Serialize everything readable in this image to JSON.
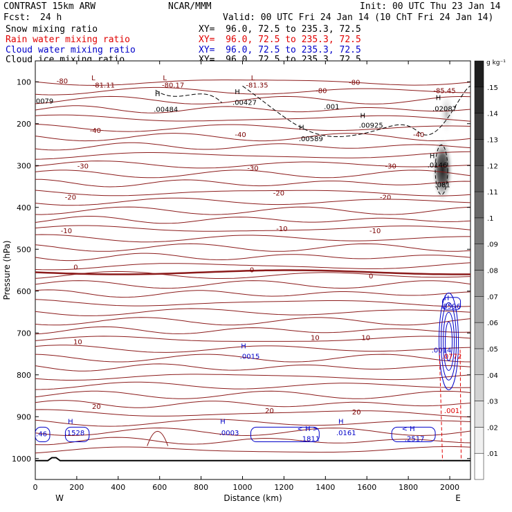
{
  "header": {
    "model": "CONTRAST 15km ARW",
    "center": "NCAR/MMM",
    "init": "Init: 00 UTC Thu 23 Jan 14",
    "fcst_label": "Fcst:",
    "fcst_value": "24 h",
    "valid": "Valid: 00 UTC Fri 24 Jan 14 (10 ChT Fri 24 Jan 14)",
    "fields": [
      {
        "name": "Snow mixing ratio",
        "xy": "XY=  96.0, 72.5 to 235.3, 72.5",
        "color": "#000000"
      },
      {
        "name": "Rain water mixing ratio",
        "xy": "XY=  96.0, 72.5 to 235.3, 72.5",
        "color": "#e00000"
      },
      {
        "name": "Cloud water mixing ratio",
        "xy": "XY=  96.0, 72.5 to 235.3, 72.5",
        "color": "#0000c8"
      },
      {
        "name": "Cloud ice mixing ratio",
        "xy": "XY=  96.0, 72.5 to 235.3, 72.5",
        "color": "#000000"
      }
    ]
  },
  "chart_data": {
    "type": "heatmap",
    "xlabel": "Distance (km)",
    "ylabel": "Pressure (hPa)",
    "xlim": [
      0,
      2100
    ],
    "ylim": [
      1050,
      50
    ],
    "x_ticks": [
      0,
      200,
      400,
      600,
      800,
      1000,
      1200,
      1400,
      1600,
      1800,
      2000
    ],
    "y_ticks": [
      100,
      200,
      300,
      400,
      500,
      600,
      700,
      800,
      900,
      1000
    ],
    "x_end_labels": {
      "left": "W",
      "right": "E"
    },
    "colorbar": {
      "unit": "g kg⁻¹",
      "ticks": [
        ".01",
        ".02",
        ".03",
        ".04",
        ".05",
        ".06",
        ".07",
        ".08",
        ".09",
        ".1",
        ".11",
        ".12",
        ".13",
        ".14",
        ".15"
      ]
    },
    "temperature_contours": [
      {
        "label": "-80",
        "p": 100
      },
      {
        "label": "-40",
        "p": 215
      },
      {
        "label": "-30",
        "p": 300
      },
      {
        "label": "-20",
        "p": 370
      },
      {
        "label": "-10",
        "p": 465
      },
      {
        "label": "0",
        "p": 560
      },
      {
        "label": "10",
        "p": 725
      },
      {
        "label": "20",
        "p": 865
      }
    ],
    "contour_labels": [
      {
        "text": "-80",
        "x": 130,
        "p": 97,
        "color": "#7a0000"
      },
      {
        "text": "-81.11",
        "x": 330,
        "p": 107,
        "color": "#7a0000"
      },
      {
        "text": "L",
        "x": 280,
        "p": 90,
        "color": "#7a0000"
      },
      {
        "text": "-80.17",
        "x": 665,
        "p": 107,
        "color": "#7a0000"
      },
      {
        "text": "L",
        "x": 625,
        "p": 90,
        "color": "#7a0000"
      },
      {
        "text": "-81.35",
        "x": 1070,
        "p": 107,
        "color": "#7a0000"
      },
      {
        "text": "L",
        "x": 1050,
        "p": 90,
        "color": "#7a0000"
      },
      {
        "text": "-80",
        "x": 1380,
        "p": 120,
        "color": "#7a0000"
      },
      {
        "text": "-80",
        "x": 1540,
        "p": 100,
        "color": "#7a0000"
      },
      {
        "text": "-85.45",
        "x": 1975,
        "p": 120,
        "color": "#7a0000"
      },
      {
        "text": ".0079",
        "x": 40,
        "p": 145,
        "color": "#000000"
      },
      {
        "text": "H",
        "x": 590,
        "p": 128,
        "color": "#000000"
      },
      {
        "text": ".00484",
        "x": 630,
        "p": 165,
        "color": "#000000"
      },
      {
        "text": "H",
        "x": 975,
        "p": 123,
        "color": "#000000"
      },
      {
        "text": ".00427",
        "x": 1010,
        "p": 148,
        "color": "#000000"
      },
      {
        "text": ".001",
        "x": 1430,
        "p": 158,
        "color": "#000000"
      },
      {
        "text": "H",
        "x": 1945,
        "p": 137,
        "color": "#000000"
      },
      {
        "text": ".02087",
        "x": 1975,
        "p": 163,
        "color": "#000000"
      },
      {
        "text": "H",
        "x": 1285,
        "p": 208,
        "color": "#000000"
      },
      {
        "text": ".00589",
        "x": 1330,
        "p": 235,
        "color": "#000000"
      },
      {
        "text": "H",
        "x": 1580,
        "p": 180,
        "color": "#000000"
      },
      {
        "text": ".00925",
        "x": 1620,
        "p": 203,
        "color": "#000000"
      },
      {
        "text": "-40",
        "x": 290,
        "p": 215,
        "color": "#7a0000"
      },
      {
        "text": "-40",
        "x": 990,
        "p": 225,
        "color": "#7a0000"
      },
      {
        "text": "-40",
        "x": 1850,
        "p": 225,
        "color": "#7a0000"
      },
      {
        "text": "H",
        "x": 1915,
        "p": 276,
        "color": "#000000"
      },
      {
        "text": ".0146",
        "x": 1940,
        "p": 298,
        "color": "#000000"
      },
      {
        "text": ".081",
        "x": 1965,
        "p": 345,
        "color": "#000000"
      },
      {
        "text": "-30",
        "x": 230,
        "p": 300,
        "color": "#7a0000"
      },
      {
        "text": "-30",
        "x": 1050,
        "p": 305,
        "color": "#7a0000"
      },
      {
        "text": "-30",
        "x": 1715,
        "p": 300,
        "color": "#7a0000"
      },
      {
        "text": "-20",
        "x": 170,
        "p": 375,
        "color": "#7a0000"
      },
      {
        "text": "-20",
        "x": 1175,
        "p": 365,
        "color": "#7a0000"
      },
      {
        "text": "-20",
        "x": 1690,
        "p": 375,
        "color": "#7a0000"
      },
      {
        "text": "-10",
        "x": 150,
        "p": 455,
        "color": "#7a0000"
      },
      {
        "text": "-10",
        "x": 1190,
        "p": 450,
        "color": "#7a0000"
      },
      {
        "text": "-10",
        "x": 1640,
        "p": 455,
        "color": "#7a0000"
      },
      {
        "text": "0",
        "x": 195,
        "p": 542,
        "color": "#7a0000"
      },
      {
        "text": "0",
        "x": 1045,
        "p": 548,
        "color": "#7a0000"
      },
      {
        "text": "0",
        "x": 1620,
        "p": 563,
        "color": "#7a0000"
      },
      {
        "text": "H",
        "x": 1985,
        "p": 615,
        "color": "#0000c8"
      },
      {
        "text": ".8596",
        "x": 2005,
        "p": 635,
        "color": "#0000c8"
      },
      {
        "text": "10",
        "x": 205,
        "p": 720,
        "color": "#7a0000"
      },
      {
        "text": "10",
        "x": 1350,
        "p": 710,
        "color": "#7a0000"
      },
      {
        "text": "10",
        "x": 1595,
        "p": 710,
        "color": "#7a0000"
      },
      {
        "text": "H",
        "x": 1005,
        "p": 730,
        "color": "#0000c8"
      },
      {
        "text": ".0015",
        "x": 1035,
        "p": 755,
        "color": "#0000c8"
      },
      {
        "text": ".0014",
        "x": 1960,
        "p": 740,
        "color": "#0000c8"
      },
      {
        "text": ".0772",
        "x": 2010,
        "p": 755,
        "color": "#e00000"
      },
      {
        "text": "20",
        "x": 295,
        "p": 875,
        "color": "#7a0000"
      },
      {
        "text": "20",
        "x": 1130,
        "p": 885,
        "color": "#7a0000"
      },
      {
        "text": "20",
        "x": 1550,
        "p": 888,
        "color": "#7a0000"
      },
      {
        "text": ".001",
        "x": 2010,
        "p": 885,
        "color": "#e00000"
      },
      {
        "text": ".46",
        "x": 30,
        "p": 940,
        "color": "#0000c8"
      },
      {
        "text": "H",
        "x": 170,
        "p": 910,
        "color": "#0000c8"
      },
      {
        "text": ".1528",
        "x": 190,
        "p": 938,
        "color": "#0000c8"
      },
      {
        "text": "H",
        "x": 905,
        "p": 910,
        "color": "#0000c8"
      },
      {
        "text": ".0003",
        "x": 935,
        "p": 938,
        "color": "#0000c8"
      },
      {
        "text": "< H >",
        "x": 1315,
        "p": 928,
        "color": "#0000c8"
      },
      {
        "text": ".1811",
        "x": 1325,
        "p": 952,
        "color": "#0000c8"
      },
      {
        "text": "H",
        "x": 1475,
        "p": 910,
        "color": "#0000c8"
      },
      {
        "text": ".0161",
        "x": 1500,
        "p": 938,
        "color": "#0000c8"
      },
      {
        "text": "< H",
        "x": 1800,
        "p": 928,
        "color": "#0000c8"
      },
      {
        "text": ".2517",
        "x": 1830,
        "p": 952,
        "color": "#0000c8"
      }
    ]
  }
}
